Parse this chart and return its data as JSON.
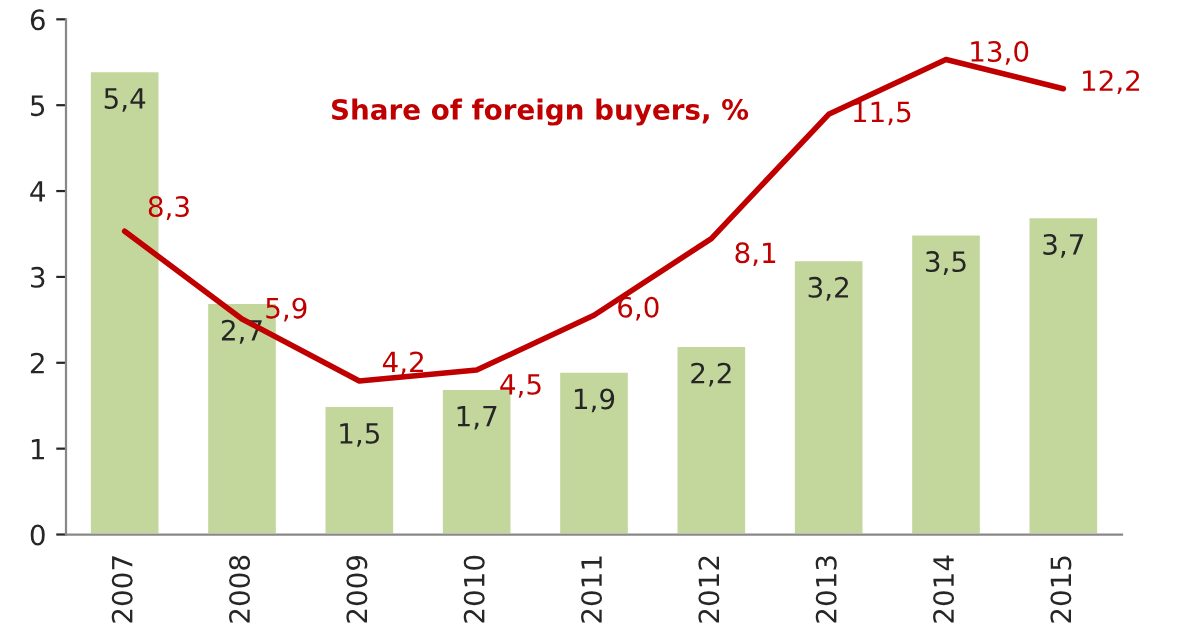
{
  "chart_data": {
    "type": "bar",
    "categories": [
      "2007",
      "2008",
      "2009",
      "2010",
      "2011",
      "2012",
      "2013",
      "2014",
      "2015"
    ],
    "ylim": [
      0,
      6
    ],
    "yticks": [
      0,
      1,
      2,
      3,
      4,
      5,
      6
    ],
    "y2lim": [
      0,
      14.1
    ],
    "grid": false,
    "legend": false,
    "series": [
      {
        "color": "#c3d69b",
        "values": [
          5.4,
          2.7,
          1.5,
          1.7,
          1.9,
          2.2,
          3.2,
          3.5,
          3.7
        ],
        "value_labels": [
          "5,4",
          "2,7",
          "1,5",
          "1,7",
          "1,9",
          "2,2",
          "3,2",
          "3,5",
          "3,7"
        ]
      },
      {
        "type": "line",
        "axis": "y2",
        "name": "Share of foreign buyers, %",
        "color": "#c00000",
        "values": [
          8.3,
          5.9,
          4.2,
          4.5,
          6.0,
          8.1,
          11.5,
          13.0,
          12.2
        ],
        "value_labels": [
          "8,3",
          "5,9",
          "4,2",
          "4,5",
          "6,0",
          "8,1",
          "11,5",
          "13,0",
          "12,2"
        ]
      }
    ]
  }
}
